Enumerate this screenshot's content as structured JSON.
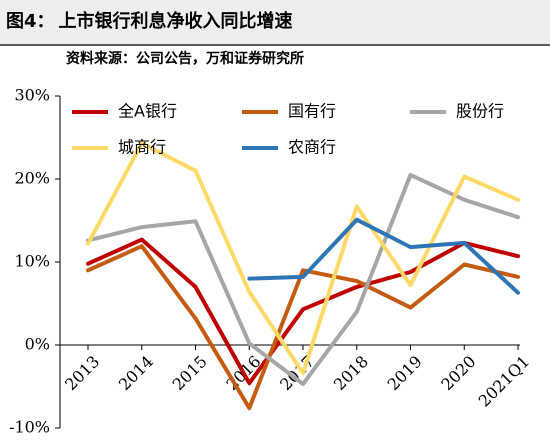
{
  "header": {
    "figure_number": "图4：",
    "title": "上市银行利息净收入同比增速",
    "source": "资料来源：公司公告，万和证券研究所"
  },
  "chart_data": {
    "type": "line",
    "title": "",
    "xlabel": "",
    "ylabel": "",
    "categories": [
      "2013",
      "2014",
      "2015",
      "2016",
      "2017",
      "2018",
      "2019",
      "2020",
      "2021Q1"
    ],
    "ylim": [
      -10,
      30
    ],
    "yticks": [
      -10,
      0,
      10,
      20,
      30
    ],
    "ytick_labels": [
      "-10%",
      "0%",
      "10%",
      "20%",
      "30%"
    ],
    "grid": false,
    "legend_position": "top",
    "series": [
      {
        "name": "全A银行",
        "color": "#c00000",
        "values": [
          9.8,
          12.7,
          7.0,
          -4.6,
          4.3,
          7.0,
          8.8,
          12.3,
          10.7
        ]
      },
      {
        "name": "国有行",
        "color": "#c55a11",
        "values": [
          9.0,
          11.9,
          3.2,
          -7.6,
          9.0,
          7.7,
          4.5,
          9.7,
          8.2
        ]
      },
      {
        "name": "股份行",
        "color": "#a6a6a6",
        "values": [
          12.6,
          14.2,
          14.9,
          0.2,
          -4.7,
          4.0,
          20.5,
          17.5,
          15.4
        ]
      },
      {
        "name": "城商行",
        "color": "#ffd966",
        "values": [
          12.2,
          24.3,
          21.0,
          6.4,
          -3.4,
          16.7,
          7.2,
          20.3,
          17.5
        ]
      },
      {
        "name": "农商行",
        "color": "#2e75b6",
        "values": [
          null,
          null,
          null,
          8.0,
          8.2,
          15.1,
          11.8,
          12.3,
          6.3
        ]
      }
    ]
  }
}
